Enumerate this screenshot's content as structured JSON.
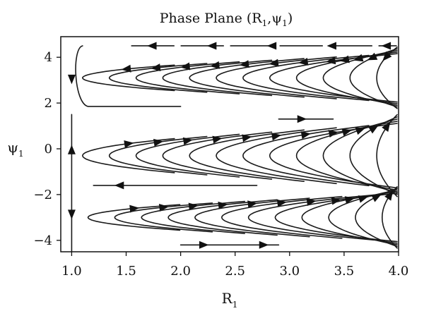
{
  "chart_data": {
    "type": "streamplot",
    "title": "Phase Plane (R",
    "title_sub1": "1",
    "title_mid": ",ψ",
    "title_sub2": "1",
    "title_end": ")",
    "xlabel": "R",
    "xlabel_sub": "1",
    "ylabel": "ψ",
    "ylabel_sub": "1",
    "xlim": [
      0.9,
      4.0
    ],
    "ylim": [
      -4.5,
      4.9
    ],
    "xticks": [
      1.0,
      1.5,
      2.0,
      2.5,
      3.0,
      3.5,
      4.0
    ],
    "xtick_labels": [
      "1.0",
      "1.5",
      "2.0",
      "2.5",
      "3.0",
      "3.5",
      "4.0"
    ],
    "yticks": [
      -4,
      -2,
      0,
      2,
      4
    ],
    "ytick_labels": [
      "−4",
      "−2",
      "0",
      "2",
      "4"
    ],
    "line_color": "#1a1a1a",
    "bands": [
      {
        "vertex_x": 1.1,
        "center": 3.1,
        "spread": 1.2,
        "direction": "counterclockwise-left",
        "note": "upper band"
      },
      {
        "vertex_x": 1.1,
        "center": -0.3,
        "spread": 1.6,
        "direction": "left-top-right-bottom"
      },
      {
        "vertex_x": 1.15,
        "center": -3.0,
        "spread": 1.2,
        "direction": "left-top-right-bottom"
      }
    ],
    "top_arrow_row": {
      "y": 4.5,
      "x": [
        1.75,
        2.3,
        2.85,
        3.4,
        3.9
      ],
      "direction": "left"
    },
    "separatrix": {
      "x": 1.0,
      "y_range": [
        -4.5,
        1.5
      ],
      "direction": "mixed"
    }
  }
}
